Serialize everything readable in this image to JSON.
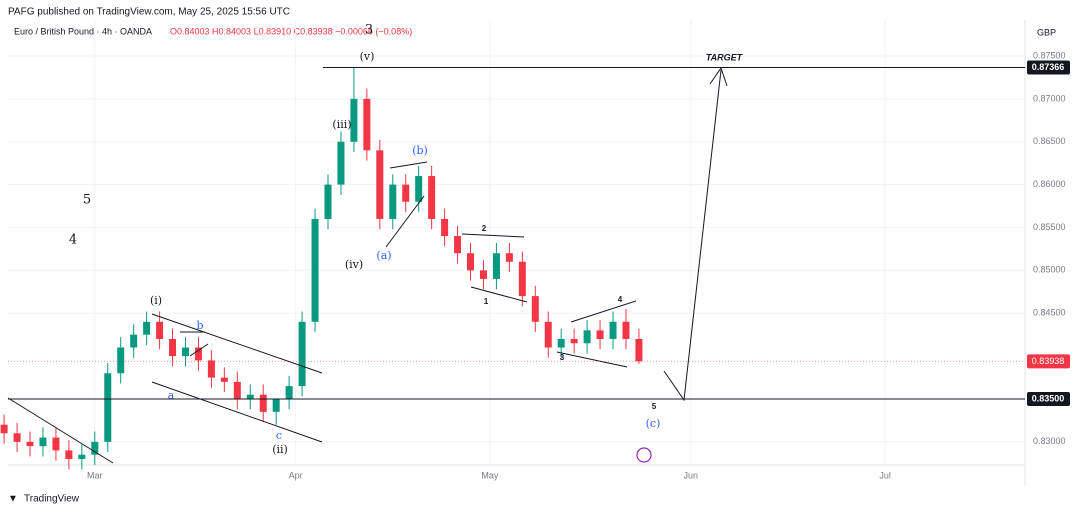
{
  "chart_data": {
    "type": "candlestick",
    "header": "PAFG published on TradingView.com, May 25, 2025 15:56 UTC",
    "symbol": "Euro / British Pound · 4h · OANDA",
    "ohlc_text": "O0.84003 H0.84003 L0.83910 C0.83938 −0.00066 (−0.08%)",
    "currency": "GBP",
    "brand": "TradingView",
    "x": [
      -14,
      -12,
      -10,
      -8,
      -6,
      -4,
      -2,
      0,
      2,
      4,
      6,
      8,
      10,
      12,
      14,
      16,
      18,
      20,
      22,
      24,
      26,
      28,
      30,
      32,
      34,
      36,
      38,
      40,
      42,
      44,
      46,
      48,
      50,
      52,
      54,
      56,
      58,
      60,
      62,
      64,
      66,
      68,
      70,
      72,
      74,
      76,
      78,
      80,
      82,
      84
    ],
    "open": [
      0.832,
      0.831,
      0.83,
      0.8295,
      0.8305,
      0.829,
      0.828,
      0.8285,
      0.83,
      0.838,
      0.841,
      0.8425,
      0.844,
      0.842,
      0.84,
      0.841,
      0.8395,
      0.8375,
      0.837,
      0.835,
      0.8355,
      0.8335,
      0.835,
      0.8365,
      0.844,
      0.856,
      0.86,
      0.865,
      0.87,
      0.864,
      0.856,
      0.86,
      0.858,
      0.861,
      0.856,
      0.854,
      0.852,
      0.85,
      0.849,
      0.852,
      0.851,
      0.847,
      0.844,
      0.841,
      0.842,
      0.8415,
      0.843,
      0.842,
      0.844,
      0.842
    ],
    "high": [
      0.8332,
      0.8322,
      0.8312,
      0.8317,
      0.8317,
      0.8302,
      0.8297,
      0.8312,
      0.8392,
      0.8422,
      0.8437,
      0.8452,
      0.8452,
      0.8432,
      0.8422,
      0.8422,
      0.8407,
      0.8387,
      0.8382,
      0.8367,
      0.8367,
      0.8347,
      0.8377,
      0.8452,
      0.8572,
      0.8612,
      0.8662,
      0.8736,
      0.8712,
      0.8652,
      0.8612,
      0.8612,
      0.8622,
      0.8622,
      0.8572,
      0.8552,
      0.8532,
      0.8512,
      0.8532,
      0.8532,
      0.8522,
      0.8482,
      0.8452,
      0.8432,
      0.8432,
      0.8442,
      0.8442,
      0.8452,
      0.8455,
      0.8432
    ],
    "low": [
      0.8298,
      0.8288,
      0.8283,
      0.8283,
      0.8278,
      0.8268,
      0.8268,
      0.8273,
      0.8288,
      0.8368,
      0.8398,
      0.8413,
      0.8408,
      0.8388,
      0.8388,
      0.8383,
      0.8363,
      0.8358,
      0.8338,
      0.8338,
      0.8323,
      0.832,
      0.8338,
      0.8353,
      0.8428,
      0.8548,
      0.8588,
      0.8638,
      0.8628,
      0.8548,
      0.8548,
      0.8568,
      0.8568,
      0.8548,
      0.8528,
      0.8508,
      0.8488,
      0.8478,
      0.8478,
      0.8498,
      0.8458,
      0.8428,
      0.8398,
      0.8398,
      0.8403,
      0.8403,
      0.8408,
      0.8408,
      0.8408,
      0.8391
    ],
    "close": [
      0.831,
      0.83,
      0.8295,
      0.8305,
      0.829,
      0.828,
      0.8285,
      0.83,
      0.838,
      0.841,
      0.8425,
      0.844,
      0.842,
      0.84,
      0.841,
      0.8395,
      0.8375,
      0.837,
      0.835,
      0.8355,
      0.8335,
      0.835,
      0.8365,
      0.844,
      0.856,
      0.86,
      0.865,
      0.87,
      0.864,
      0.856,
      0.86,
      0.858,
      0.861,
      0.856,
      0.854,
      0.852,
      0.85,
      0.849,
      0.852,
      0.851,
      0.847,
      0.844,
      0.841,
      0.842,
      0.8415,
      0.843,
      0.842,
      0.844,
      0.842,
      0.8394
    ],
    "up_color": "#089981",
    "down_color": "#f23645",
    "xlim": [
      -13.4,
      143.6
    ],
    "xticks": [
      {
        "value": 0,
        "label": "Mar"
      },
      {
        "value": 31,
        "label": "Apr"
      },
      {
        "value": 61,
        "label": "May"
      },
      {
        "value": 92,
        "label": "Jun"
      },
      {
        "value": 122,
        "label": "Jul"
      }
    ],
    "ylim": [
      0.8273,
      0.8792
    ],
    "yticks": [
      {
        "value": 0.875,
        "label": "0.87500"
      },
      {
        "value": 0.87,
        "label": "0.87000"
      },
      {
        "value": 0.865,
        "label": "0.86500"
      },
      {
        "value": 0.86,
        "label": "0.86000"
      },
      {
        "value": 0.855,
        "label": "0.85500"
      },
      {
        "value": 0.85,
        "label": "0.85000"
      },
      {
        "value": 0.845,
        "label": "0.84500"
      },
      {
        "value": 0.83,
        "label": "0.83000"
      }
    ],
    "levels": [
      {
        "value": 0.87366,
        "label": "0.87366"
      },
      {
        "value": 0.835,
        "label": "0.83500"
      }
    ],
    "last_price": {
      "value": 0.83938,
      "label": "0.83938"
    },
    "annotations": [
      "3",
      "5",
      "4",
      "(v)",
      "(iii)",
      "(iv)",
      "(b)",
      "(a)",
      "2",
      "1",
      "4",
      "3",
      "5",
      "(c)",
      "(i)",
      "b",
      "a",
      "c",
      "(ii)",
      "TARGET"
    ]
  }
}
